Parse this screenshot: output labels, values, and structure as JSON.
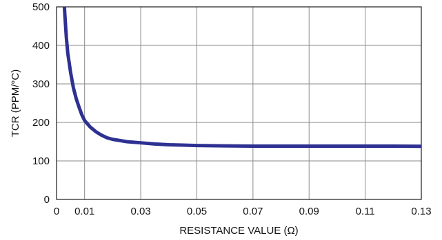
{
  "chart_data": {
    "type": "line",
    "xlabel": "RESISTANCE VALUE (Ω)",
    "ylabel": "TCR (PPM/°C)",
    "xlim": [
      0,
      0.13
    ],
    "ylim": [
      0,
      500
    ],
    "x_ticks": [
      0,
      0.01,
      0.03,
      0.05,
      0.07,
      0.09,
      0.11,
      0.13
    ],
    "x_tick_labels": [
      "0",
      "0.01",
      "0.03",
      "0.05",
      "0.07",
      "0.09",
      "0.11",
      "0.13"
    ],
    "y_ticks": [
      0,
      100,
      200,
      300,
      400,
      500
    ],
    "y_tick_labels": [
      "0",
      "100",
      "200",
      "300",
      "400",
      "500"
    ],
    "grid": true,
    "line_color": "#2e3192",
    "series": [
      {
        "values": [
          [
            0.0028,
            500
          ],
          [
            0.003,
            475
          ],
          [
            0.0035,
            420
          ],
          [
            0.004,
            380
          ],
          [
            0.005,
            330
          ],
          [
            0.006,
            290
          ],
          [
            0.007,
            262
          ],
          [
            0.008,
            240
          ],
          [
            0.009,
            220
          ],
          [
            0.01,
            205
          ],
          [
            0.012,
            188
          ],
          [
            0.014,
            176
          ],
          [
            0.016,
            167
          ],
          [
            0.018,
            160
          ],
          [
            0.02,
            156
          ],
          [
            0.025,
            150
          ],
          [
            0.03,
            147
          ],
          [
            0.035,
            144
          ],
          [
            0.04,
            142
          ],
          [
            0.045,
            141
          ],
          [
            0.05,
            140
          ],
          [
            0.06,
            139
          ],
          [
            0.07,
            138.5
          ],
          [
            0.08,
            138.5
          ],
          [
            0.09,
            138.5
          ],
          [
            0.1,
            138.5
          ],
          [
            0.11,
            138.5
          ],
          [
            0.12,
            138.5
          ],
          [
            0.13,
            138
          ]
        ]
      }
    ]
  }
}
